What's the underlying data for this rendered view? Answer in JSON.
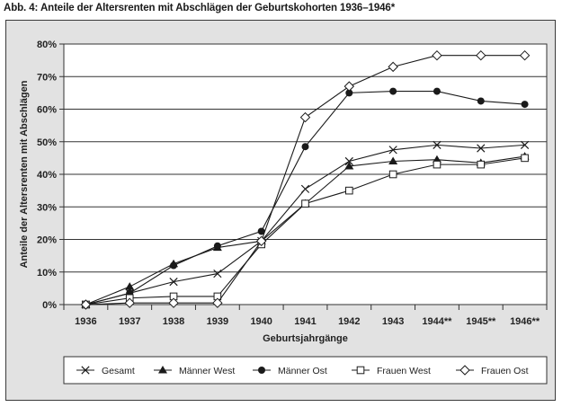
{
  "figure": {
    "title": "Abb. 4:  Anteile der Altersrenten mit Abschlägen der Geburtskohorten 1936–1946*"
  },
  "chart_data": {
    "type": "line",
    "title": "Abb. 4:  Anteile der Altersrenten mit Abschlägen der Geburtskohorten 1936–1946*",
    "xlabel": "Geburtsjahrgänge",
    "ylabel": "Anteile der Altersrenten mit Abschlägen",
    "categories": [
      "1936",
      "1937",
      "1938",
      "1939",
      "1940",
      "1941",
      "1942",
      "1943",
      "1944**",
      "1945**",
      "1946**"
    ],
    "y_ticks": [
      "0%",
      "10%",
      "20%",
      "30%",
      "40%",
      "50%",
      "60%",
      "70%",
      "80%"
    ],
    "ylim": [
      0,
      80
    ],
    "grid": "horizontal",
    "legend_position": "bottom",
    "series": [
      {
        "name": "Gesamt",
        "marker": "x",
        "values": [
          0,
          3.5,
          7,
          9.5,
          19.5,
          35.5,
          44,
          47.5,
          49,
          48,
          49
        ]
      },
      {
        "name": "Männer West",
        "marker": "triangle",
        "values": [
          0,
          5.5,
          12.5,
          17.5,
          19.5,
          31,
          42.5,
          44,
          44.5,
          43.5,
          45.5
        ]
      },
      {
        "name": "Männer Ost",
        "marker": "circle",
        "values": [
          0,
          3.5,
          12,
          18,
          22.5,
          48.5,
          65,
          65.5,
          65.5,
          62.5,
          61.5
        ]
      },
      {
        "name": "Frauen West",
        "marker": "square",
        "values": [
          0,
          2,
          2.5,
          2.5,
          18.5,
          31,
          35,
          40,
          43,
          43,
          45
        ]
      },
      {
        "name": "Frauen Ost",
        "marker": "diamond",
        "values": [
          0,
          0.5,
          0.5,
          0.5,
          19.5,
          57.5,
          67,
          73,
          76.5,
          76.5,
          76.5
        ]
      }
    ]
  }
}
